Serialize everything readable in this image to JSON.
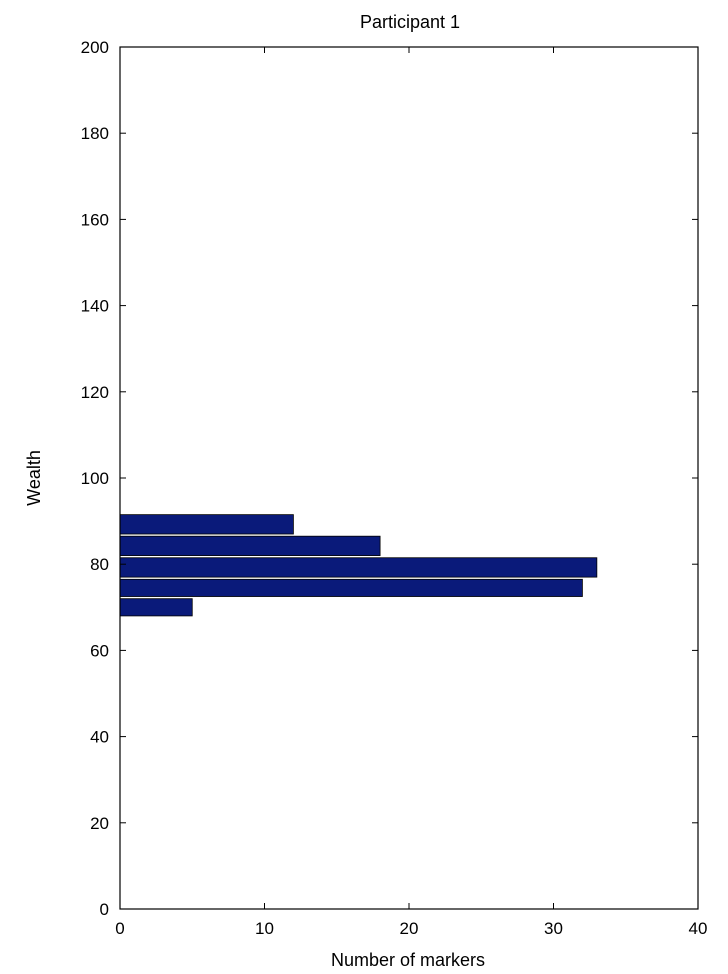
{
  "chart_data": {
    "type": "bar",
    "orientation": "horizontal",
    "title": "Participant 1",
    "xlabel": "Number of markers",
    "ylabel": "Wealth",
    "xlim": [
      0,
      40
    ],
    "ylim": [
      0,
      200
    ],
    "xticks": [
      0,
      10,
      20,
      30,
      40
    ],
    "yticks": [
      0,
      20,
      40,
      60,
      80,
      100,
      120,
      140,
      160,
      180,
      200
    ],
    "grid": false,
    "bar_color": "#0a1a7a",
    "bins": [
      {
        "y_low": 68,
        "y_high": 72,
        "count": 5
      },
      {
        "y_low": 72.5,
        "y_high": 76.5,
        "count": 32
      },
      {
        "y_low": 77,
        "y_high": 81.5,
        "count": 33
      },
      {
        "y_low": 82,
        "y_high": 86.5,
        "count": 18
      },
      {
        "y_low": 87,
        "y_high": 91.5,
        "count": 12
      }
    ]
  }
}
